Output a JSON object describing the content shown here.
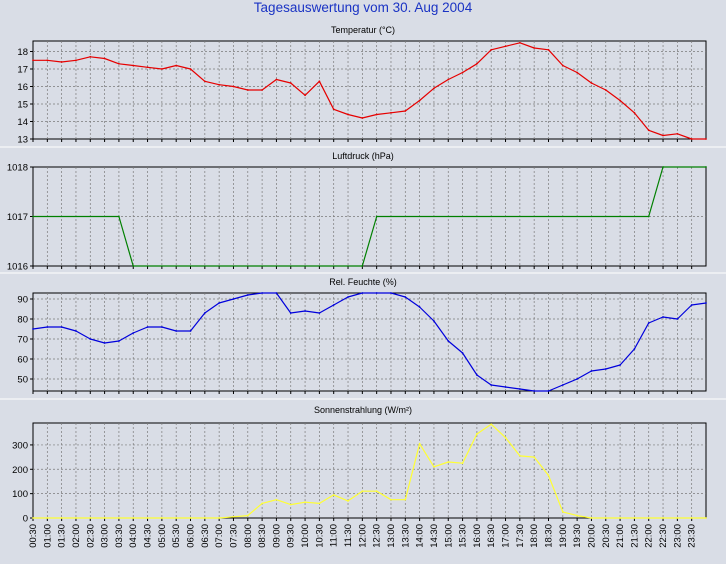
{
  "title": "Tagesauswertung vom 30. Aug 2004",
  "time_labels": [
    "00:30",
    "01:00",
    "01:30",
    "02:00",
    "02:30",
    "03:00",
    "03:30",
    "04:00",
    "04:30",
    "05:00",
    "05:30",
    "06:00",
    "06:30",
    "07:00",
    "07:30",
    "08:00",
    "08:30",
    "09:00",
    "09:30",
    "10:00",
    "10:30",
    "11:00",
    "11:30",
    "12:00",
    "12:30",
    "13:00",
    "13:30",
    "14:00",
    "14:30",
    "15:00",
    "15:30",
    "16:00",
    "16:30",
    "17:00",
    "17:30",
    "18:00",
    "18:30",
    "19:00",
    "19:30",
    "20:00",
    "20:30",
    "21:00",
    "21:30",
    "22:00",
    "22:30",
    "23:00",
    "23:30"
  ],
  "colors": {
    "background": "#d9dde6",
    "title": "#1a33c4",
    "grid": "#7a7a7a"
  },
  "chart_data": [
    {
      "type": "line",
      "title": "Temperatur (°C)",
      "color": "#e60000",
      "ylim": [
        13,
        18.6
      ],
      "yticks": [
        13,
        14,
        15,
        16,
        17,
        18
      ],
      "x": [
        0,
        0.5,
        1,
        1.5,
        2,
        2.5,
        3,
        3.5,
        4,
        4.5,
        5,
        5.5,
        6,
        6.5,
        7,
        7.5,
        8,
        8.5,
        9,
        9.5,
        10,
        10.5,
        11,
        11.5,
        12,
        12.5,
        13,
        13.5,
        14,
        14.5,
        15,
        15.5,
        16,
        16.5,
        17,
        17.5,
        18,
        18.5,
        19,
        19.5,
        20,
        20.5,
        21,
        21.5,
        22,
        22.5,
        23,
        23.5
      ],
      "values": [
        17.5,
        17.5,
        17.4,
        17.5,
        17.7,
        17.6,
        17.3,
        17.2,
        17.1,
        17.0,
        17.2,
        17.0,
        16.3,
        16.1,
        16.0,
        15.8,
        15.8,
        16.4,
        16.2,
        15.5,
        16.3,
        14.7,
        14.4,
        14.2,
        14.4,
        14.5,
        14.6,
        15.2,
        15.9,
        16.4,
        16.8,
        17.3,
        18.1,
        18.3,
        18.5,
        18.2,
        18.1,
        17.2,
        16.8,
        16.2,
        15.8,
        15.2,
        14.5,
        13.5,
        13.2,
        13.3,
        13.0,
        13.0
      ],
      "grid": true
    },
    {
      "type": "line",
      "title": "Luftdruck (hPa)",
      "color": "#008000",
      "ylim": [
        1016,
        1018
      ],
      "yticks": [
        1016,
        1017,
        1018
      ],
      "x": [
        0,
        3,
        3.5,
        11.5,
        12,
        21.5,
        22,
        23.5
      ],
      "values": [
        1017,
        1017,
        1016,
        1016,
        1017,
        1017,
        1018,
        1018
      ],
      "grid": true
    },
    {
      "type": "line",
      "title": "Rel. Feuchte (%)",
      "color": "#0000dc",
      "ylim": [
        44,
        93
      ],
      "yticks": [
        50,
        60,
        70,
        80,
        90
      ],
      "x": [
        0,
        0.5,
        1,
        1.5,
        2,
        2.5,
        3,
        3.5,
        4,
        4.5,
        5,
        5.5,
        6,
        6.5,
        7,
        7.5,
        8,
        8.5,
        9,
        9.5,
        10,
        10.5,
        11,
        11.5,
        12,
        12.5,
        13,
        13.5,
        14,
        14.5,
        15,
        15.5,
        16,
        16.5,
        17,
        17.5,
        18,
        18.5,
        19,
        19.5,
        20,
        20.5,
        21,
        21.5,
        22,
        22.5,
        23,
        23.5
      ],
      "values": [
        75,
        76,
        76,
        74,
        70,
        68,
        69,
        73,
        76,
        76,
        74,
        74,
        83,
        88,
        90,
        92,
        93,
        93,
        83,
        84,
        83,
        87,
        91,
        93,
        93,
        93,
        91,
        86,
        79,
        69,
        63,
        52,
        47,
        46,
        45,
        44,
        44,
        47,
        50,
        54,
        55,
        57,
        65,
        78,
        81,
        80,
        87,
        88
      ],
      "grid": true
    },
    {
      "type": "line",
      "title": "Sonnenstrahlung (W/m²)",
      "color": "#ffff33",
      "ylim": [
        0,
        390
      ],
      "yticks": [
        0,
        100,
        200,
        300
      ],
      "x": [
        0,
        0.5,
        1,
        1.5,
        2,
        2.5,
        3,
        3.5,
        4,
        4.5,
        5,
        5.5,
        6,
        6.5,
        7,
        7.5,
        8,
        8.5,
        9,
        9.5,
        10,
        10.5,
        11,
        11.5,
        12,
        12.5,
        13,
        13.5,
        14,
        14.5,
        15,
        15.5,
        16,
        16.5,
        17,
        17.5,
        18,
        18.5,
        19,
        19.5,
        20,
        20.5,
        21,
        21.5,
        22,
        22.5,
        23,
        23.5
      ],
      "values": [
        0,
        0,
        0,
        0,
        0,
        0,
        0,
        0,
        0,
        0,
        0,
        0,
        0,
        0,
        5,
        10,
        60,
        75,
        55,
        65,
        60,
        95,
        70,
        110,
        110,
        75,
        75,
        305,
        210,
        230,
        225,
        345,
        385,
        330,
        255,
        250,
        175,
        25,
        10,
        0,
        0,
        0,
        0,
        0,
        0,
        0,
        0,
        0
      ],
      "grid": true
    }
  ]
}
